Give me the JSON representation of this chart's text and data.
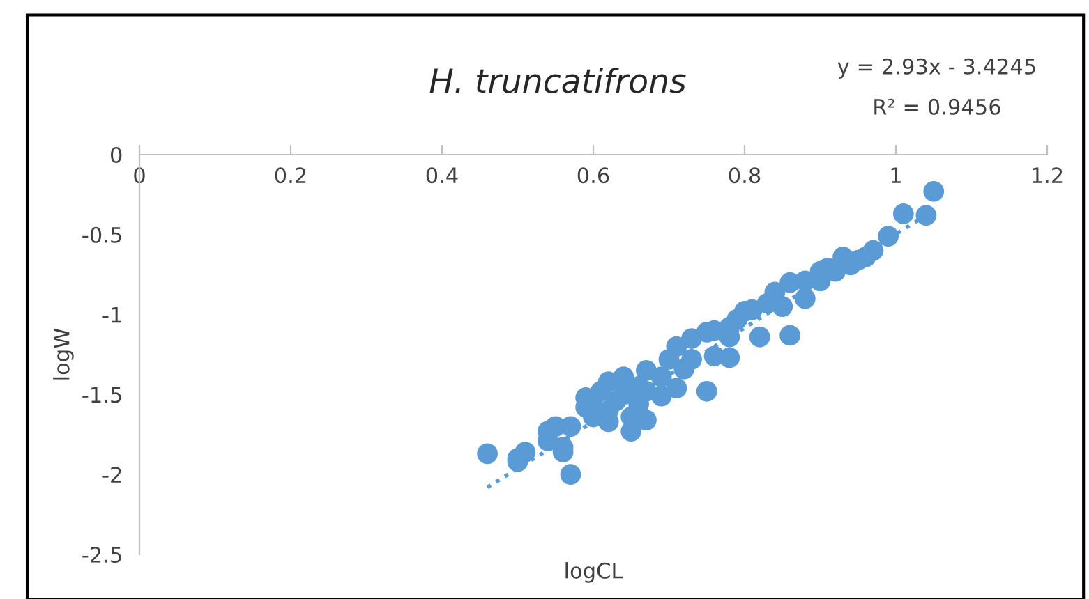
{
  "chart_data": {
    "type": "scatter",
    "title": "H. truncatifrons",
    "xlabel": "logCL",
    "ylabel": "logW",
    "annotations": [
      "y = 2.93x - 3.4245",
      "R² = 0.9456"
    ],
    "xlim": [
      0,
      1.2
    ],
    "xticks": [
      0,
      0.2,
      0.4,
      0.6,
      0.8,
      1,
      1.2
    ],
    "ylim": [
      -2.5,
      0
    ],
    "yticks": [
      0,
      -0.5,
      -1,
      -1.5,
      -2,
      -2.5
    ],
    "series": [
      {
        "color": "#5b9bd5",
        "marker": "circle",
        "x": [
          0.46,
          0.5,
          0.5,
          0.51,
          0.54,
          0.55,
          0.56,
          0.54,
          0.56,
          0.57,
          0.57,
          0.59,
          0.59,
          0.6,
          0.6,
          0.62,
          0.62,
          0.63,
          0.64,
          0.65,
          0.65,
          0.66,
          0.67,
          0.67,
          0.69,
          0.69,
          0.71,
          0.72,
          0.73,
          0.75,
          0.75,
          0.76,
          0.78,
          0.78,
          0.78,
          0.79,
          0.81,
          0.82,
          0.83,
          0.84,
          0.86,
          0.86,
          0.88,
          0.88,
          0.9,
          0.9,
          0.91,
          0.92,
          0.93,
          0.94,
          0.95,
          0.96,
          0.97,
          0.99,
          1.01,
          1.04,
          1.05,
          0.64,
          0.62,
          0.61,
          0.66,
          0.67,
          0.7,
          0.73,
          0.76,
          0.71,
          0.8,
          0.85
        ],
        "values": [
          -1.87,
          -1.9,
          -1.92,
          -1.86,
          -1.73,
          -1.7,
          -1.86,
          -1.79,
          -1.83,
          -2.0,
          -1.7,
          -1.58,
          -1.52,
          -1.64,
          -1.57,
          -1.6,
          -1.67,
          -1.54,
          -1.5,
          -1.64,
          -1.73,
          -1.56,
          -1.48,
          -1.66,
          -1.39,
          -1.51,
          -1.46,
          -1.34,
          -1.28,
          -1.48,
          -1.11,
          -1.26,
          -1.14,
          -1.08,
          -1.27,
          -1.03,
          -0.97,
          -1.14,
          -0.93,
          -0.86,
          -1.13,
          -0.8,
          -0.79,
          -0.9,
          -0.73,
          -0.79,
          -0.71,
          -0.73,
          -0.64,
          -0.69,
          -0.66,
          -0.64,
          -0.6,
          -0.51,
          -0.37,
          -0.38,
          -0.23,
          -1.39,
          -1.42,
          -1.48,
          -1.45,
          -1.35,
          -1.28,
          -1.15,
          -1.1,
          -1.2,
          -0.98,
          -0.95
        ]
      },
      {
        "type": "line",
        "color": "#5b9bd5",
        "line_style": "dotted",
        "marker": "none",
        "x": [
          0.46,
          1.05
        ],
        "values": [
          -2.08,
          -0.35
        ]
      }
    ]
  }
}
